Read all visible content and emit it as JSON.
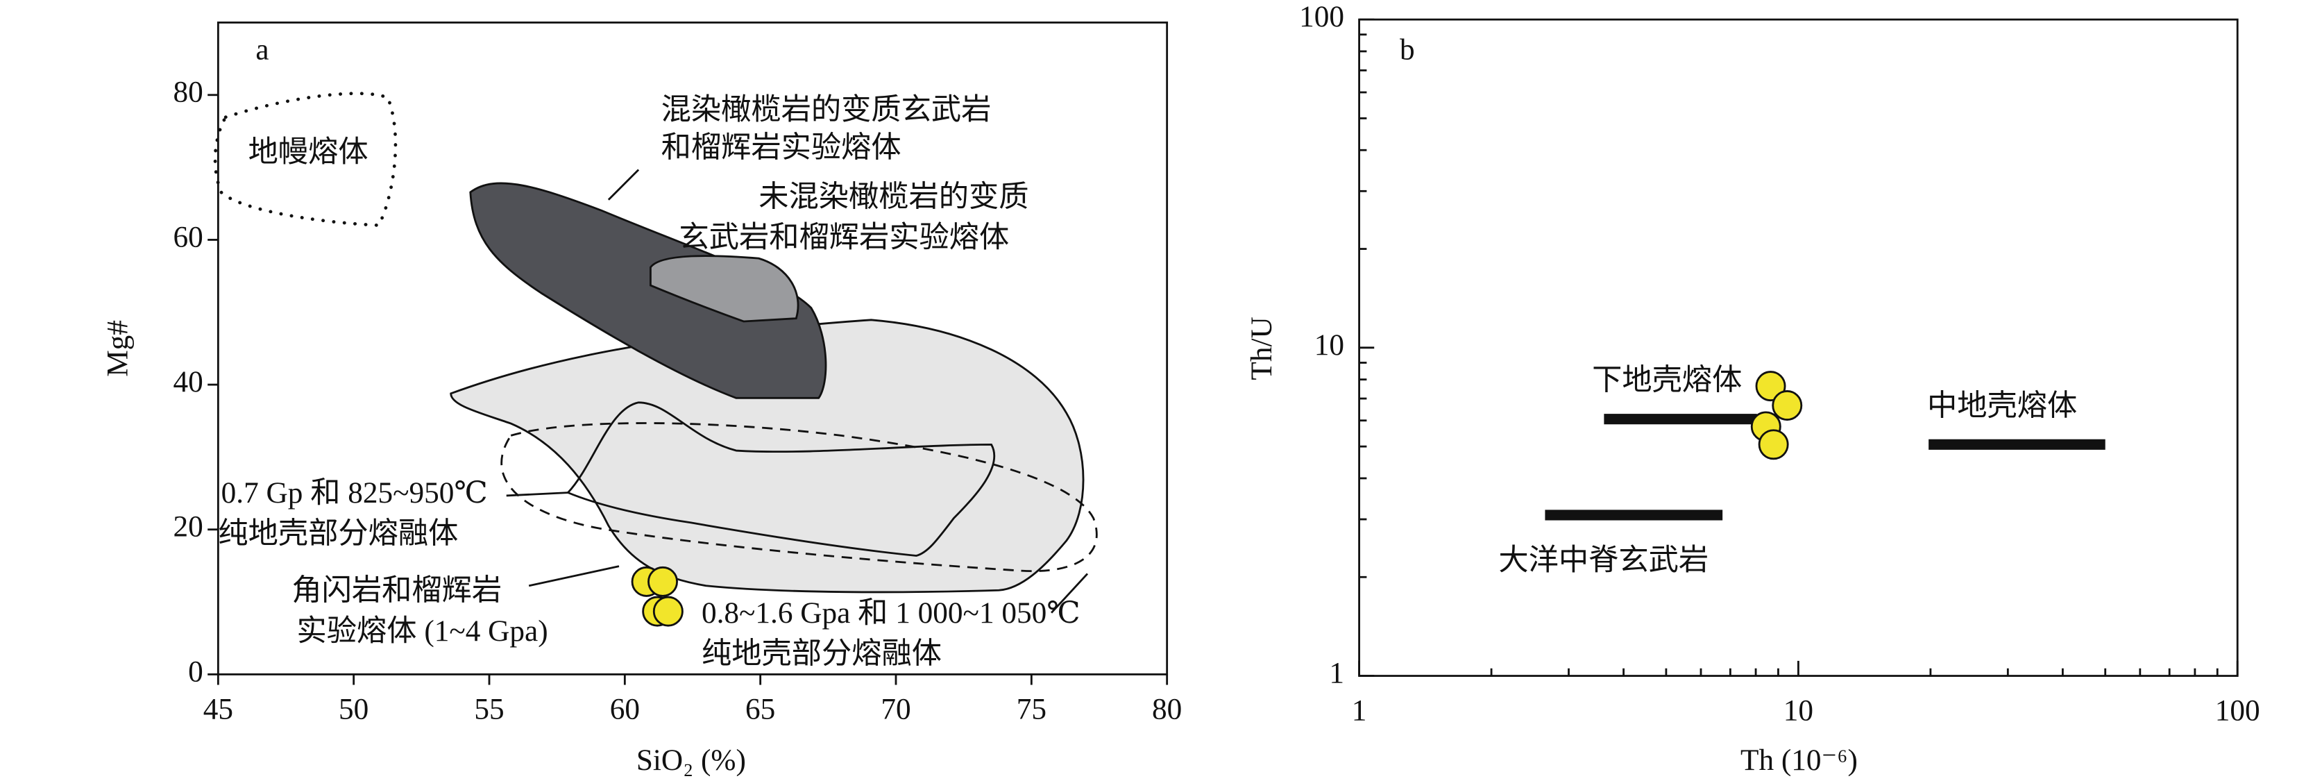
{
  "chart_data": [
    {
      "type": "scatter",
      "panel": "a",
      "x_label": "SiO₂ (%)",
      "y_label": "Mg#",
      "xlim": [
        45,
        80
      ],
      "xticks": [
        45,
        50,
        55,
        60,
        65,
        70,
        75,
        80
      ],
      "ylim": [
        0,
        90
      ],
      "yticks": [
        0,
        20,
        40,
        60,
        80
      ],
      "series": [
        {
          "color": "#f2e52a",
          "x": [
            60.8,
            61.4,
            61.2,
            61.6
          ],
          "y": [
            12.8,
            12.8,
            8.7,
            8.7
          ]
        }
      ],
      "annotations": [
        [
          "地幔熔体"
        ],
        [
          "混染橄榄岩的变质玄武岩",
          "和榴辉岩实验熔体"
        ],
        [
          "未混染橄榄岩的变质",
          "玄武岩和榴辉岩实验熔体"
        ],
        [
          "0.7 Gp 和 825~950℃",
          "纯地壳部分熔融体"
        ],
        [
          "角闪岩和榴辉岩",
          "实验熔体 (1~4 Gpa)"
        ],
        [
          "0.8~1.6 Gpa 和 1 000~1 050℃",
          "纯地壳部分熔融体"
        ]
      ]
    },
    {
      "type": "scatter",
      "panel": "b",
      "x_label": "Th (10⁻⁶)",
      "y_label": "Th/U",
      "x_scale": "log",
      "y_scale": "log",
      "xlim": [
        1,
        100
      ],
      "xticks": [
        1,
        10,
        100
      ],
      "ylim": [
        1,
        100
      ],
      "yticks": [
        1,
        10,
        100
      ],
      "series": [
        {
          "color": "#f2e52a",
          "x": [
            8.65,
            9.43,
            8.44,
            8.78
          ],
          "y": [
            7.64,
            6.67,
            5.75,
            5.07
          ]
        }
      ],
      "ranges": [
        {
          "name": "下地壳熔体",
          "x": [
            3.61,
            8.05
          ],
          "y": 6.06
        },
        {
          "name": "中地壳熔体",
          "x": [
            19.8,
            50
          ],
          "y": 5.07
        },
        {
          "name": "大洋中脊玄武岩",
          "x": [
            2.65,
            6.72
          ],
          "y": 3.09
        }
      ]
    }
  ]
}
